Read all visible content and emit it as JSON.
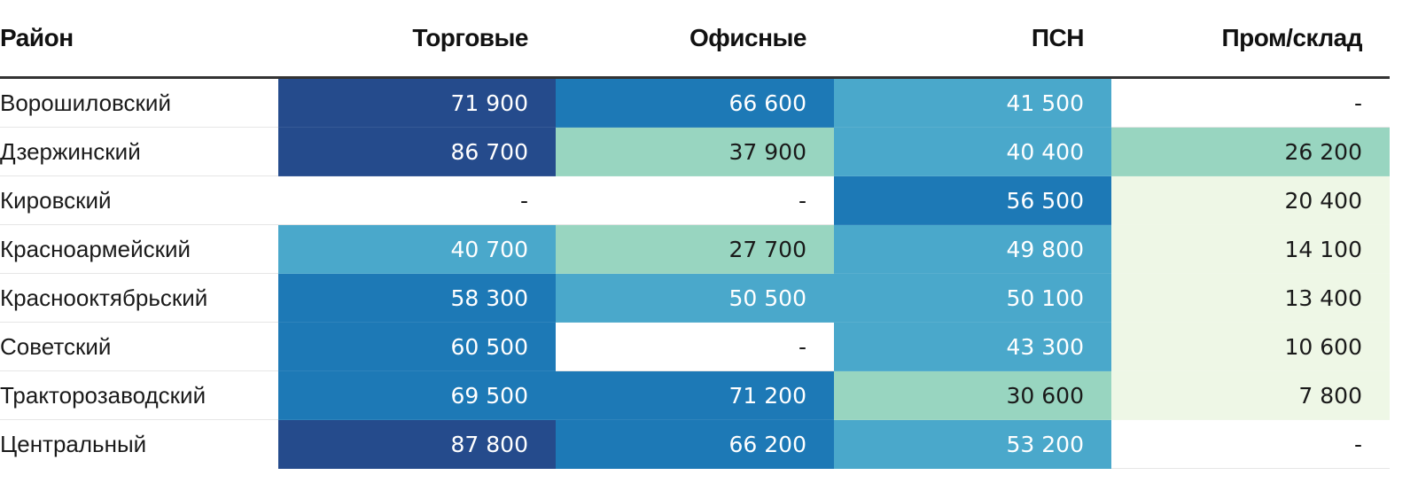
{
  "table": {
    "headers": [
      "Район",
      "Торговые",
      "Офисные",
      "ПСН",
      "Пром/склад"
    ],
    "rows": [
      {
        "name": "Ворошиловский",
        "cells": [
          {
            "text": "71 900",
            "bg": "#254b8c",
            "fg": "#ffffff"
          },
          {
            "text": "66 600",
            "bg": "#1d79b6",
            "fg": "#ffffff"
          },
          {
            "text": "41 500",
            "bg": "#4aa8cb",
            "fg": "#ffffff"
          },
          {
            "text": "-",
            "bg": "#ffffff",
            "fg": "#1a1a1a"
          }
        ]
      },
      {
        "name": "Дзержинский",
        "cells": [
          {
            "text": "86 700",
            "bg": "#254b8c",
            "fg": "#ffffff"
          },
          {
            "text": "37 900",
            "bg": "#98d5c0",
            "fg": "#1a1a1a"
          },
          {
            "text": "40 400",
            "bg": "#4aa8cb",
            "fg": "#ffffff"
          },
          {
            "text": "26 200",
            "bg": "#98d5c0",
            "fg": "#1a1a1a"
          }
        ]
      },
      {
        "name": "Кировский",
        "cells": [
          {
            "text": "-",
            "bg": "#ffffff",
            "fg": "#1a1a1a"
          },
          {
            "text": "-",
            "bg": "#ffffff",
            "fg": "#1a1a1a"
          },
          {
            "text": "56 500",
            "bg": "#1d79b6",
            "fg": "#ffffff"
          },
          {
            "text": "20 400",
            "bg": "#eef7e6",
            "fg": "#1a1a1a"
          }
        ]
      },
      {
        "name": "Красноармейский",
        "cells": [
          {
            "text": "40 700",
            "bg": "#4aa8cb",
            "fg": "#ffffff"
          },
          {
            "text": "27 700",
            "bg": "#98d5c0",
            "fg": "#1a1a1a"
          },
          {
            "text": "49 800",
            "bg": "#4aa8cb",
            "fg": "#ffffff"
          },
          {
            "text": "14 100",
            "bg": "#eef7e6",
            "fg": "#1a1a1a"
          }
        ]
      },
      {
        "name": "Краснооктябрьский",
        "cells": [
          {
            "text": "58 300",
            "bg": "#1d79b6",
            "fg": "#ffffff"
          },
          {
            "text": "50 500",
            "bg": "#4aa8cb",
            "fg": "#ffffff"
          },
          {
            "text": "50 100",
            "bg": "#4aa8cb",
            "fg": "#ffffff"
          },
          {
            "text": "13 400",
            "bg": "#eef7e6",
            "fg": "#1a1a1a"
          }
        ]
      },
      {
        "name": "Советский",
        "cells": [
          {
            "text": "60 500",
            "bg": "#1d79b6",
            "fg": "#ffffff"
          },
          {
            "text": "-",
            "bg": "#ffffff",
            "fg": "#1a1a1a"
          },
          {
            "text": "43 300",
            "bg": "#4aa8cb",
            "fg": "#ffffff"
          },
          {
            "text": "10 600",
            "bg": "#eef7e6",
            "fg": "#1a1a1a"
          }
        ]
      },
      {
        "name": "Тракторозаводский",
        "cells": [
          {
            "text": "69 500",
            "bg": "#1d79b6",
            "fg": "#ffffff"
          },
          {
            "text": "71 200",
            "bg": "#1d79b6",
            "fg": "#ffffff"
          },
          {
            "text": "30 600",
            "bg": "#98d5c0",
            "fg": "#1a1a1a"
          },
          {
            "text": "7 800",
            "bg": "#eef7e6",
            "fg": "#1a1a1a"
          }
        ]
      },
      {
        "name": "Центральный",
        "cells": [
          {
            "text": "87 800",
            "bg": "#254b8c",
            "fg": "#ffffff"
          },
          {
            "text": "66 200",
            "bg": "#1d79b6",
            "fg": "#ffffff"
          },
          {
            "text": "53 200",
            "bg": "#4aa8cb",
            "fg": "#ffffff"
          },
          {
            "text": "-",
            "bg": "#ffffff",
            "fg": "#1a1a1a"
          }
        ]
      }
    ]
  }
}
